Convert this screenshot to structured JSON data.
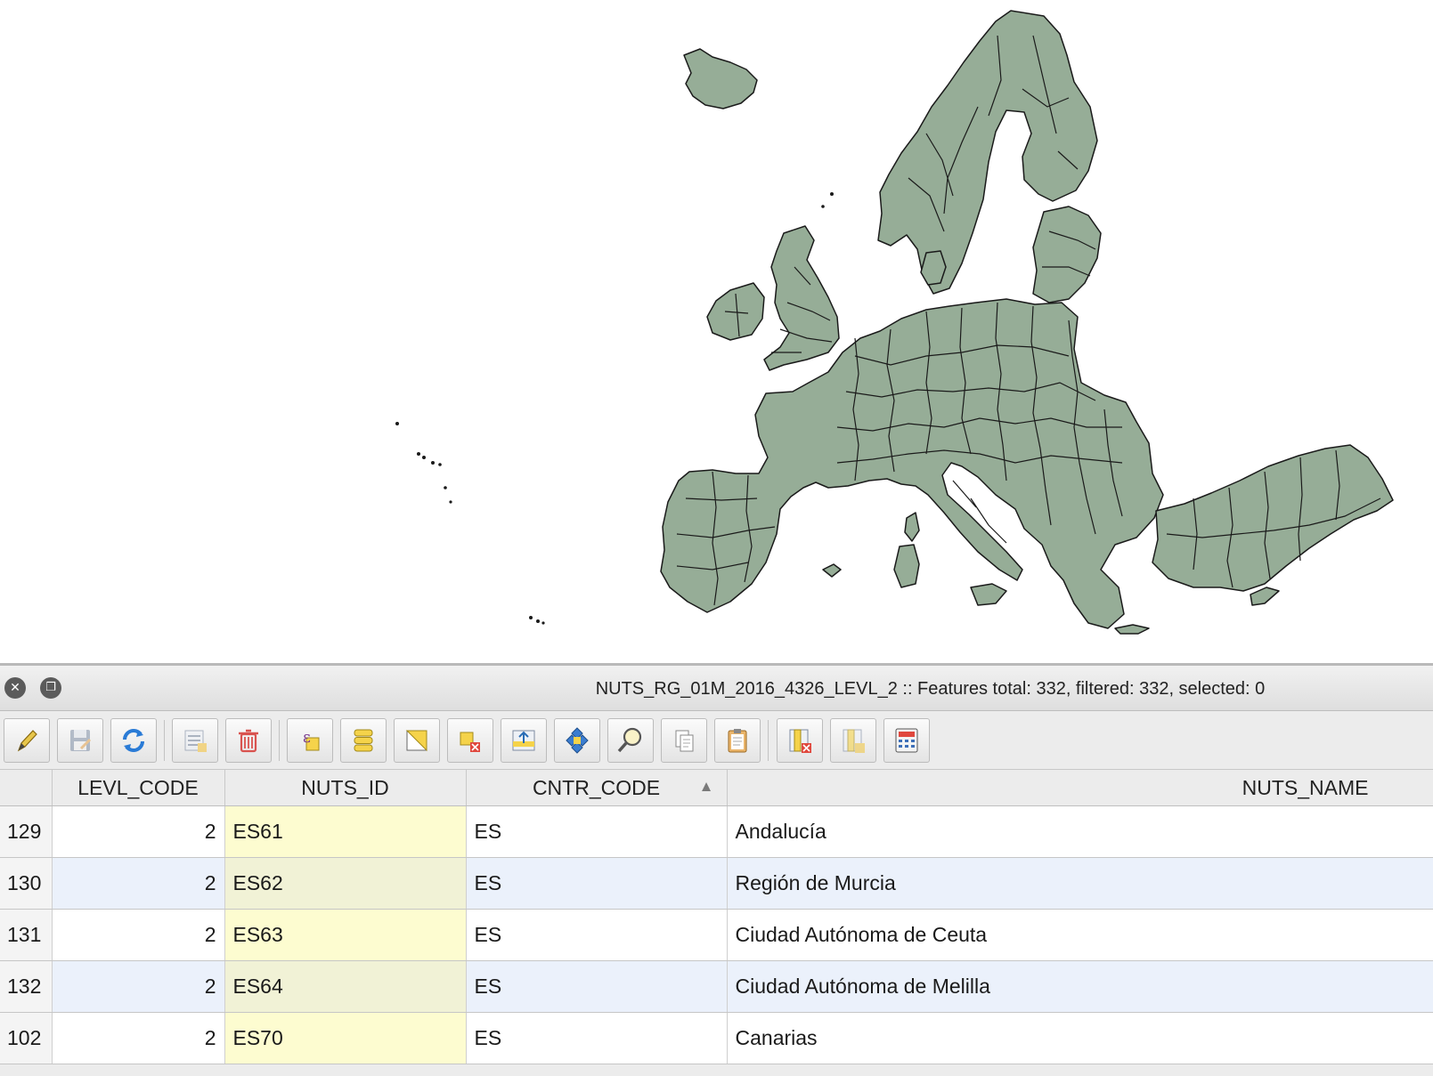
{
  "map": {
    "fill_color": "#96ad97",
    "stroke_color": "#1a1a1a",
    "background": "#ffffff"
  },
  "dock": {
    "title": "NUTS_RG_01M_2016_4326_LEVL_2 :: Features total: 332, filtered: 332, selected: 0",
    "close_icon": "✕",
    "float_icon": "❐"
  },
  "toolbar": {
    "buttons": [
      "toggle-editing",
      "save-edits",
      "reload-table",
      "add-feature",
      "delete-selected",
      "select-by-expression",
      "select-all",
      "invert-selection",
      "deselect-all",
      "move-selection-to-top",
      "pan-map-to-selected",
      "zoom-map-to-selected",
      "copy-selected-rows",
      "paste-features",
      "delete-field",
      "new-field",
      "open-field-calculator"
    ]
  },
  "table": {
    "columns": [
      "LEVL_CODE",
      "NUTS_ID",
      "CNTR_CODE",
      "NUTS_NAME"
    ],
    "sort_indicator": "▲",
    "rows": [
      {
        "row": "129",
        "levl_code": "2",
        "nuts_id": "ES61",
        "cntr_code": "ES",
        "nuts_name": "Andalucía"
      },
      {
        "row": "130",
        "levl_code": "2",
        "nuts_id": "ES62",
        "cntr_code": "ES",
        "nuts_name": "Región de Murcia"
      },
      {
        "row": "131",
        "levl_code": "2",
        "nuts_id": "ES63",
        "cntr_code": "ES",
        "nuts_name": "Ciudad Autónoma de Ceuta"
      },
      {
        "row": "132",
        "levl_code": "2",
        "nuts_id": "ES64",
        "cntr_code": "ES",
        "nuts_name": "Ciudad Autónoma de Melilla"
      },
      {
        "row": "102",
        "levl_code": "2",
        "nuts_id": "ES70",
        "cntr_code": "ES",
        "nuts_name": "Canarias"
      }
    ]
  }
}
